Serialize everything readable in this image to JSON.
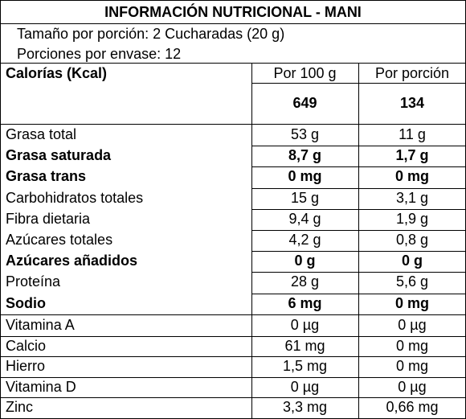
{
  "label": {
    "title": "INFORMACIÓN NUTRICIONAL - MANI",
    "serving_size": "Tamaño por porción: 2 Cucharadas (20 g)",
    "servings_per_container": "Porciones por envase: 12",
    "calories_label": "Calorías (Kcal)",
    "col_per_100g": "Por 100 g",
    "col_per_serving": "Por porción",
    "calories_per_100g": "649",
    "calories_per_serving": "134",
    "nutrients": [
      {
        "name": "Grasa total",
        "per100": "53 g",
        "serving": "11 g",
        "bold": false
      },
      {
        "name": "Grasa saturada",
        "per100": "8,7 g",
        "serving": "1,7 g",
        "bold": true
      },
      {
        "name": "Grasa trans",
        "per100": "0 mg",
        "serving": "0 mg",
        "bold": true
      },
      {
        "name": "Carbohidratos totales",
        "per100": "15 g",
        "serving": "3,1 g",
        "bold": false
      },
      {
        "name": "Fibra dietaria",
        "per100": "9,4 g",
        "serving": "1,9 g",
        "bold": false
      },
      {
        "name": "Azúcares totales",
        "per100": "4,2 g",
        "serving": "0,8 g",
        "bold": false
      },
      {
        "name": "Azúcares añadidos",
        "per100": "0 g",
        "serving": "0 g",
        "bold": true
      },
      {
        "name": "Proteína",
        "per100": "28 g",
        "serving": "5,6 g",
        "bold": false
      },
      {
        "name": "Sodio",
        "per100": "6 mg",
        "serving": "0 mg",
        "bold": true
      }
    ],
    "vitamins": [
      {
        "name": "Vitamina A",
        "per100": "0 µg",
        "serving": "0 µg"
      },
      {
        "name": "Calcio",
        "per100": "61 mg",
        "serving": "0 mg"
      },
      {
        "name": "Hierro",
        "per100": "1,5 mg",
        "serving": "0 mg"
      },
      {
        "name": "Vitamina D",
        "per100": "0 µg",
        "serving": "0 µg"
      },
      {
        "name": "Zinc",
        "per100": "3,3 mg",
        "serving": "0,66 mg"
      }
    ]
  }
}
